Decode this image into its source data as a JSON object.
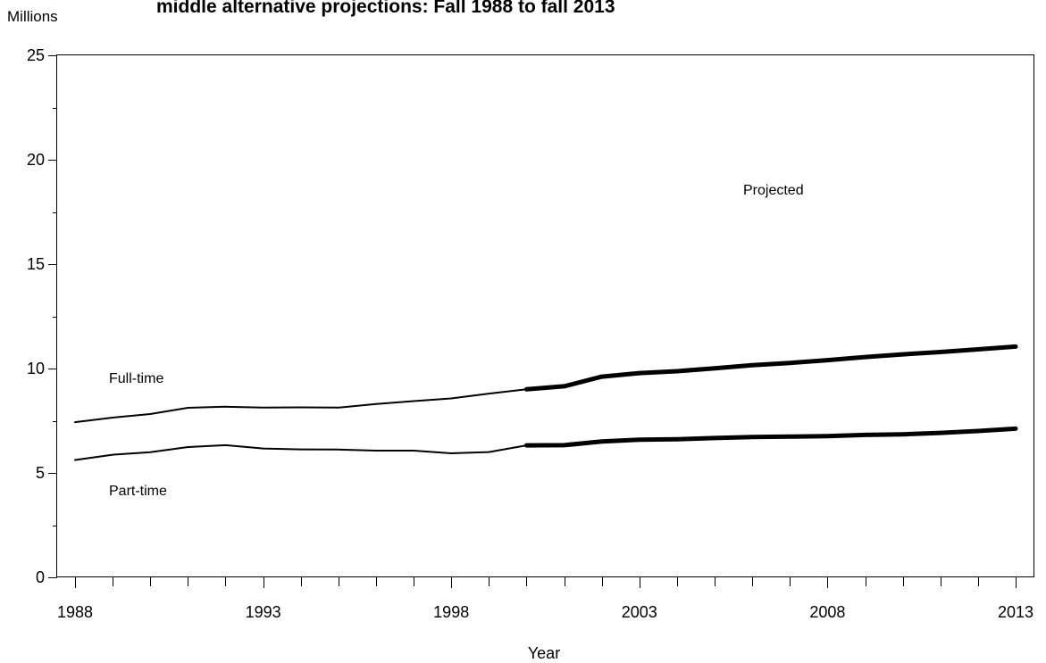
{
  "chart_data": {
    "type": "line",
    "title": "middle alternative projections: Fall 1988 to fall 2013",
    "xlabel": "Year",
    "ylabel": "Millions",
    "xlim": [
      1988,
      2013
    ],
    "ylim": [
      0,
      25
    ],
    "x_ticks": [
      1988,
      1993,
      1998,
      2003,
      2008,
      2013
    ],
    "y_ticks": [
      0,
      5,
      10,
      15,
      20,
      25
    ],
    "grid": false,
    "projection_start": 2000,
    "projected_label": "Projected",
    "x": [
      1988,
      1989,
      1990,
      1991,
      1992,
      1993,
      1994,
      1995,
      1996,
      1997,
      1998,
      1999,
      2000,
      2001,
      2002,
      2003,
      2004,
      2005,
      2006,
      2007,
      2008,
      2009,
      2010,
      2011,
      2012,
      2013
    ],
    "series": [
      {
        "name": "Full-time",
        "values": [
          7.43,
          7.65,
          7.82,
          8.12,
          8.17,
          8.13,
          8.14,
          8.13,
          8.3,
          8.44,
          8.57,
          8.8,
          9.01,
          9.15,
          9.61,
          9.78,
          9.87,
          10.01,
          10.16,
          10.27,
          10.4,
          10.55,
          10.68,
          10.79,
          10.92,
          11.05
        ]
      },
      {
        "name": "Part-time",
        "values": [
          5.62,
          5.87,
          5.99,
          6.24,
          6.33,
          6.17,
          6.13,
          6.12,
          6.07,
          6.07,
          5.94,
          6.0,
          6.32,
          6.33,
          6.51,
          6.59,
          6.61,
          6.67,
          6.72,
          6.74,
          6.76,
          6.82,
          6.85,
          6.92,
          7.01,
          7.12
        ]
      }
    ]
  }
}
